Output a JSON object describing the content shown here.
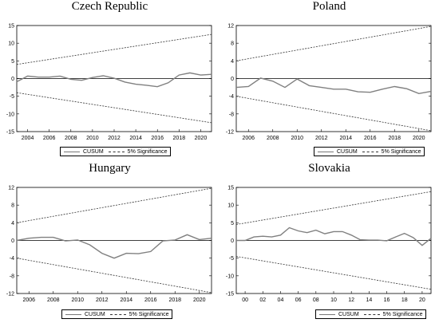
{
  "chart_data": [
    {
      "type": "line",
      "title": "Czech Republic",
      "ylim": [
        -15,
        15
      ],
      "yticks": [
        "15",
        "10",
        "5",
        "0",
        "-5",
        "-10",
        "-15"
      ],
      "xticks": [
        "2004",
        "2006",
        "2008",
        "2010",
        "2012",
        "2014",
        "2016",
        "2018",
        "2020"
      ],
      "xrange": [
        2003,
        2021
      ],
      "series": [
        {
          "name": "CUSUM",
          "x": [
            2003,
            2004,
            2005,
            2006,
            2007,
            2008,
            2009,
            2010,
            2011,
            2012,
            2013,
            2014,
            2015,
            2016,
            2017,
            2018,
            2019,
            2020,
            2021
          ],
          "values": [
            -0.9,
            0.7,
            0.4,
            0.4,
            0.7,
            -0.2,
            -0.5,
            0.3,
            0.8,
            0.1,
            -1.0,
            -1.6,
            -1.9,
            -2.3,
            -1.2,
            1.0,
            1.6,
            1.0,
            1.2
          ]
        },
        {
          "name": "5% Significance",
          "x": [
            2003,
            2021
          ],
          "values": [
            4.0,
            12.5
          ]
        },
        {
          "name": "5% Significance",
          "x": [
            2003,
            2021
          ],
          "values": [
            -4.0,
            -12.5
          ]
        }
      ],
      "legend": [
        "CUSUM",
        "5% Significance"
      ],
      "legend_position": "bottom"
    },
    {
      "type": "line",
      "title": "Poland",
      "ylim": [
        -12,
        12
      ],
      "yticks": [
        "12",
        "8",
        "4",
        "0",
        "-4",
        "-8",
        "-12"
      ],
      "xticks": [
        "2006",
        "2008",
        "2010",
        "2012",
        "2014",
        "2016",
        "2018",
        "2020"
      ],
      "xrange": [
        2005,
        2021
      ],
      "series": [
        {
          "name": "CUSUM",
          "x": [
            2005,
            2006,
            2007,
            2008,
            2009,
            2010,
            2011,
            2012,
            2013,
            2014,
            2015,
            2016,
            2017,
            2018,
            2019,
            2020,
            2021
          ],
          "values": [
            -2.0,
            -1.8,
            0.1,
            -0.6,
            -2.0,
            -0.1,
            -1.6,
            -2.0,
            -2.4,
            -2.4,
            -3.0,
            -3.1,
            -2.4,
            -1.8,
            -2.3,
            -3.4,
            -2.9
          ]
        },
        {
          "name": "5% Significance",
          "x": [
            2005,
            2021
          ],
          "values": [
            4.0,
            11.8
          ]
        },
        {
          "name": "5% Significance",
          "x": [
            2005,
            2021
          ],
          "values": [
            -4.0,
            -11.8
          ]
        }
      ],
      "legend": [
        "CUSUM",
        "5% Significance"
      ],
      "legend_position": "bottom"
    },
    {
      "type": "line",
      "title": "Hungary",
      "ylim": [
        -12,
        12
      ],
      "yticks": [
        "12",
        "8",
        "4",
        "0",
        "-4",
        "-8",
        "-12"
      ],
      "xticks": [
        "2006",
        "2008",
        "2010",
        "2012",
        "2014",
        "2016",
        "2018",
        "2020"
      ],
      "xrange": [
        2005,
        2021
      ],
      "series": [
        {
          "name": "CUSUM",
          "x": [
            2005,
            2006,
            2007,
            2008,
            2009,
            2010,
            2011,
            2012,
            2013,
            2014,
            2015,
            2016,
            2017,
            2018,
            2019,
            2020,
            2021
          ],
          "values": [
            0.0,
            0.5,
            0.7,
            0.7,
            -0.1,
            0.1,
            -1.0,
            -2.9,
            -4.0,
            -2.9,
            -3.0,
            -2.5,
            -0.1,
            0.1,
            1.3,
            0.2,
            0.5
          ]
        },
        {
          "name": "5% Significance",
          "x": [
            2005,
            2021
          ],
          "values": [
            4.0,
            11.8
          ]
        },
        {
          "name": "5% Significance",
          "x": [
            2005,
            2021
          ],
          "values": [
            -4.0,
            -11.8
          ]
        }
      ],
      "legend": [
        "CUSUM",
        "5% Significance"
      ],
      "legend_position": "bottom"
    },
    {
      "type": "line",
      "title": "Slovakia",
      "ylim": [
        -15,
        15
      ],
      "yticks": [
        "15",
        "10",
        "5",
        "0",
        "-5",
        "-10",
        "-15"
      ],
      "xticks": [
        "00",
        "02",
        "04",
        "06",
        "08",
        "10",
        "12",
        "14",
        "16",
        "18",
        "20"
      ],
      "xrange": [
        1999,
        2021
      ],
      "series": [
        {
          "name": "CUSUM",
          "x": [
            1999,
            2000,
            2001,
            2002,
            2003,
            2004,
            2005,
            2006,
            2007,
            2008,
            2009,
            2010,
            2011,
            2012,
            2013,
            2014,
            2015,
            2016,
            2017,
            2018,
            2019,
            2020,
            2021
          ],
          "values": [
            0.0,
            0.0,
            1.0,
            1.2,
            1.0,
            1.5,
            3.6,
            2.7,
            2.2,
            2.9,
            1.9,
            2.5,
            2.5,
            1.5,
            0.2,
            0.1,
            0.1,
            -0.1,
            1.0,
            2.0,
            0.8,
            -1.4,
            0.6
          ]
        },
        {
          "name": "5% Significance",
          "x": [
            1999,
            2021
          ],
          "values": [
            4.5,
            13.8
          ]
        },
        {
          "name": "5% Significance",
          "x": [
            1999,
            2021
          ],
          "values": [
            -4.5,
            -13.8
          ]
        }
      ],
      "legend": [
        "CUSUM",
        "5% Significance"
      ],
      "legend_position": "bottom"
    }
  ]
}
